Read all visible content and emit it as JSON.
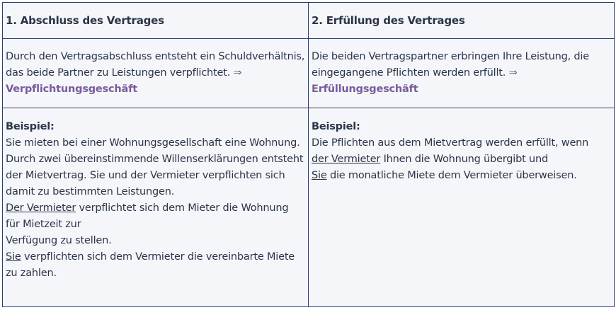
{
  "colors": {
    "text": "#2b3547",
    "accent": "#7b5a9f",
    "border": "#34405a",
    "background": "#f5f6fa"
  },
  "columns": [
    {
      "header": "1. Abschluss des Vertrages",
      "definition": "Durch den Vertragsabschluss entsteht ein Schuldverhältnis, das beide Partner zu Leistungen verpflichtet.",
      "arrow": "⇒",
      "term": "Verpflichtungsgeschäft",
      "example_label": "Beispiel:",
      "example_lines": [
        "Sie mieten bei einer Wohnungsgesellschaft eine Wohnung. Durch zwei übereinstimmende Willenserklärungen  entsteht der Mietvertrag. Sie und der Vermieter verpflichten sich damit zu bestimmten Leistungen."
      ],
      "party1": "Der Vermieter",
      "party1_text": " verpflichtet sich dem Mieter die Wohnung für Mietzeit zur",
      "party1_text2": "Verfügung zu stellen.",
      "party2": "Sie",
      "party2_text": " verpflichten sich dem Vermieter die vereinbarte Miete zu zahlen."
    },
    {
      "header": "2. Erfüllung des Vertrages",
      "definition": "Die beiden Vertragspartner erbringen Ihre Leistung, die eingegangene Pflichten werden erfüllt.",
      "arrow": "⇒",
      "term": "Erfüllungsgeschäft",
      "example_label": "Beispiel:",
      "example_intro": "Die Pflichten aus dem Mietvertrag werden erfüllt, wenn",
      "party1": "der Vermieter",
      "party1_text": " Ihnen die Wohnung übergibt und",
      "party2": "Sie",
      "party2_text": " die monatliche Miete dem Vermieter überweisen."
    }
  ]
}
